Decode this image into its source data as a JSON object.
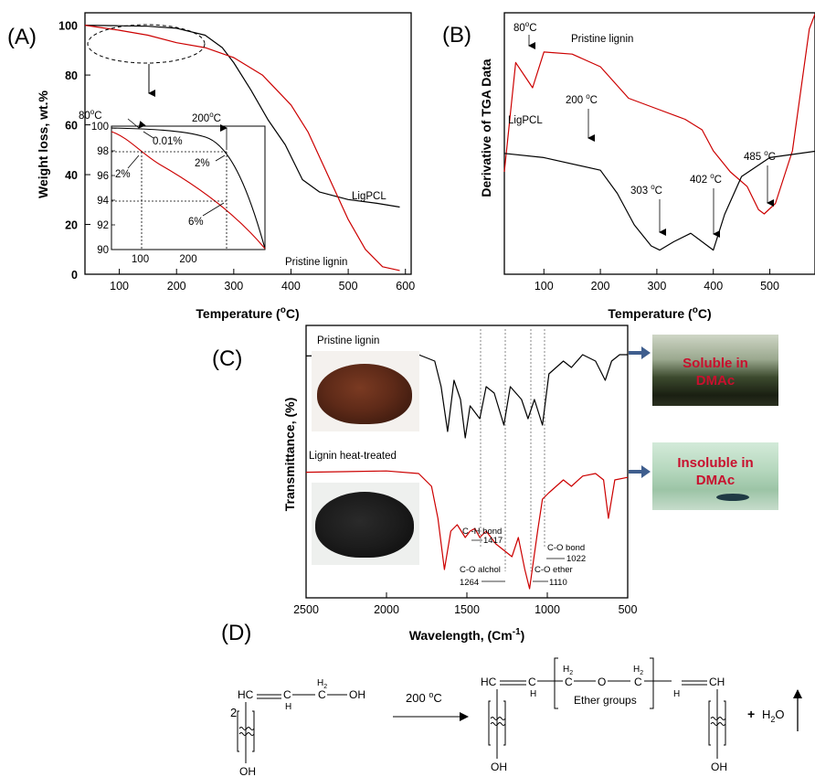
{
  "panels": {
    "a": {
      "letter": "(A)",
      "xlabel_main": "Temperature (",
      "xlabel_sup": "o",
      "xlabel_end": "C)",
      "ylabel": "Weight loss, wt.%",
      "series_labels": {
        "ligpcl": "LigPCL",
        "lignin": "Pristine lignin"
      },
      "inset_ann": {
        "t80": "80",
        "t80_sup": "o",
        "t80_end": "C",
        "t200": "200",
        "t200_sup": "o",
        "t200_end": "C",
        "pct001": "0.01%",
        "pct2a": "2%",
        "pct2b": "2%",
        "pct6": "6%"
      }
    },
    "b": {
      "letter": "(B)",
      "xlabel_main": "Temperature (",
      "xlabel_sup": "o",
      "xlabel_end": "C)",
      "ylabel": "Derivative of TGA Data",
      "series_labels": {
        "lignin": "Pristine lignin",
        "ligpcl": "LigPCL"
      },
      "ann": {
        "t80": "80",
        "t200": "200",
        "t303": "303",
        "t402": "402",
        "t485": "485",
        "sup": "o",
        "unit": "C"
      }
    },
    "c": {
      "letter": "(C)",
      "xlabel_main": "Wavelength, (Cm",
      "xlabel_sup": "-1",
      "xlabel_end": ")",
      "ylabel": "Transmittance, (%)",
      "series_labels": {
        "lignin": "Pristine lignin",
        "heat": "Lignin heat-treated"
      },
      "ann": {
        "ch_bond": "C -H bond",
        "v1417": "1417",
        "co_bond": "C-O bond",
        "v1022": "1022",
        "co_alchol": "C-O alchol",
        "v1264": "1264",
        "co_ether": "C-O ether",
        "v1110": "1110"
      },
      "vials": {
        "soluble_l1": "Soluble in",
        "soluble_l2": "DMAc",
        "insoluble_l1": "Insoluble in",
        "insoluble_l2": "DMAc"
      }
    },
    "d": {
      "letter": "(D)",
      "coef": "2",
      "cond_main": "200 ",
      "cond_sup": "o",
      "cond_end": "C",
      "hc": "HC",
      "h": "H",
      "c": "C",
      "h2": "H",
      "h2_sub": "2",
      "oh": "OH",
      "o": "O",
      "ch": "CH",
      "ether_groups": "Ether groups",
      "plus": "+",
      "water": "H",
      "water_sub": "2",
      "water_end": "O"
    }
  },
  "chart_data": [
    {
      "type": "line",
      "title": "",
      "xlabel": "Temperature (oC)",
      "ylabel": "Weight loss, wt.%",
      "xlim": [
        40,
        610
      ],
      "ylim": [
        0,
        105
      ],
      "xticks": [
        100,
        200,
        300,
        400,
        500,
        600
      ],
      "yticks": [
        0,
        20,
        40,
        60,
        80,
        100
      ],
      "series": [
        {
          "name": "LigPCL",
          "color": "#000000",
          "x": [
            40,
            100,
            150,
            200,
            250,
            280,
            300,
            330,
            360,
            390,
            420,
            450,
            500,
            550,
            590
          ],
          "y": [
            100,
            99.8,
            99.6,
            98.8,
            96,
            91,
            85,
            74,
            62,
            52,
            38,
            33,
            30,
            28.5,
            27
          ]
        },
        {
          "name": "Pristine lignin",
          "color": "#cc0000",
          "x": [
            40,
            100,
            150,
            200,
            250,
            300,
            350,
            400,
            430,
            460,
            500,
            530,
            560,
            590
          ],
          "y": [
            100,
            98,
            96,
            93,
            91,
            87,
            80,
            68,
            57,
            42,
            22,
            10,
            3,
            1.5
          ]
        }
      ]
    },
    {
      "type": "line",
      "title": "",
      "xlabel": "Temperature (oC)",
      "ylabel": "Derivative of TGA Data",
      "xlim": [
        30,
        580
      ],
      "xticks": [
        100,
        200,
        300,
        400,
        500
      ],
      "y_ticks_shown": false,
      "series": [
        {
          "name": "Pristine lignin",
          "color": "#cc0000",
          "x": [
            30,
            50,
            80,
            100,
            150,
            200,
            250,
            300,
            350,
            380,
            400,
            430,
            460,
            480,
            490,
            510,
            540,
            570,
            580
          ],
          "y": [
            0.2,
            0.72,
            0.6,
            0.77,
            0.76,
            0.7,
            0.55,
            0.5,
            0.45,
            0.4,
            0.3,
            0.2,
            0.13,
            0.02,
            0,
            0.05,
            0.3,
            0.88,
            0.95
          ]
        },
        {
          "name": "LigPCL",
          "color": "#000000",
          "x": [
            30,
            100,
            200,
            230,
            260,
            290,
            305,
            330,
            360,
            390,
            400,
            420,
            450,
            500,
            580
          ],
          "y": [
            0.44,
            0.42,
            0.36,
            0.25,
            0.1,
            0.0,
            -0.02,
            0.02,
            0.06,
            0.0,
            -0.02,
            0.15,
            0.33,
            0.42,
            0.45
          ]
        }
      ],
      "annotations": [
        "80 oC",
        "200 oC",
        "303 oC",
        "402 oC",
        "485 oC"
      ]
    },
    {
      "type": "line",
      "title": "",
      "xlabel": "Wavelength, (Cm-1)",
      "ylabel": "Transmittance, (%)",
      "xlim": [
        2500,
        500
      ],
      "xticks": [
        2500,
        2000,
        1500,
        1000,
        500
      ],
      "y_ticks_shown": false,
      "series": [
        {
          "name": "Pristine lignin",
          "color": "#000000",
          "x": [
            2500,
            2000,
            1800,
            1700,
            1660,
            1620,
            1580,
            1540,
            1510,
            1480,
            1450,
            1420,
            1380,
            1330,
            1270,
            1230,
            1160,
            1120,
            1080,
            1030,
            990,
            900,
            850,
            780,
            700,
            640,
            600,
            550,
            500
          ],
          "y": [
            0.94,
            0.95,
            0.95,
            0.9,
            0.7,
            0.35,
            0.75,
            0.6,
            0.3,
            0.55,
            0.5,
            0.45,
            0.7,
            0.65,
            0.4,
            0.7,
            0.6,
            0.45,
            0.6,
            0.4,
            0.8,
            0.9,
            0.85,
            0.95,
            0.9,
            0.75,
            0.9,
            0.95,
            0.95
          ]
        },
        {
          "name": "Lignin heat-treated",
          "color": "#cc0000",
          "x": [
            2500,
            2000,
            1800,
            1720,
            1680,
            1640,
            1600,
            1560,
            1510,
            1480,
            1450,
            1420,
            1380,
            1320,
            1270,
            1220,
            1180,
            1140,
            1110,
            1060,
            1030,
            990,
            900,
            850,
            780,
            700,
            650,
            620,
            580,
            500
          ],
          "y": [
            0.96,
            0.97,
            0.95,
            0.85,
            0.6,
            0.2,
            0.5,
            0.55,
            0.45,
            0.5,
            0.52,
            0.45,
            0.5,
            0.4,
            0.35,
            0.3,
            0.45,
            0.2,
            0.05,
            0.5,
            0.75,
            0.8,
            0.9,
            0.85,
            0.93,
            0.95,
            0.9,
            0.6,
            0.9,
            0.92
          ]
        }
      ],
      "annotations": [
        "C -H bond 1417",
        "C-O bond 1022",
        "C-O alchol 1264",
        "C-O ether 1110"
      ]
    }
  ]
}
